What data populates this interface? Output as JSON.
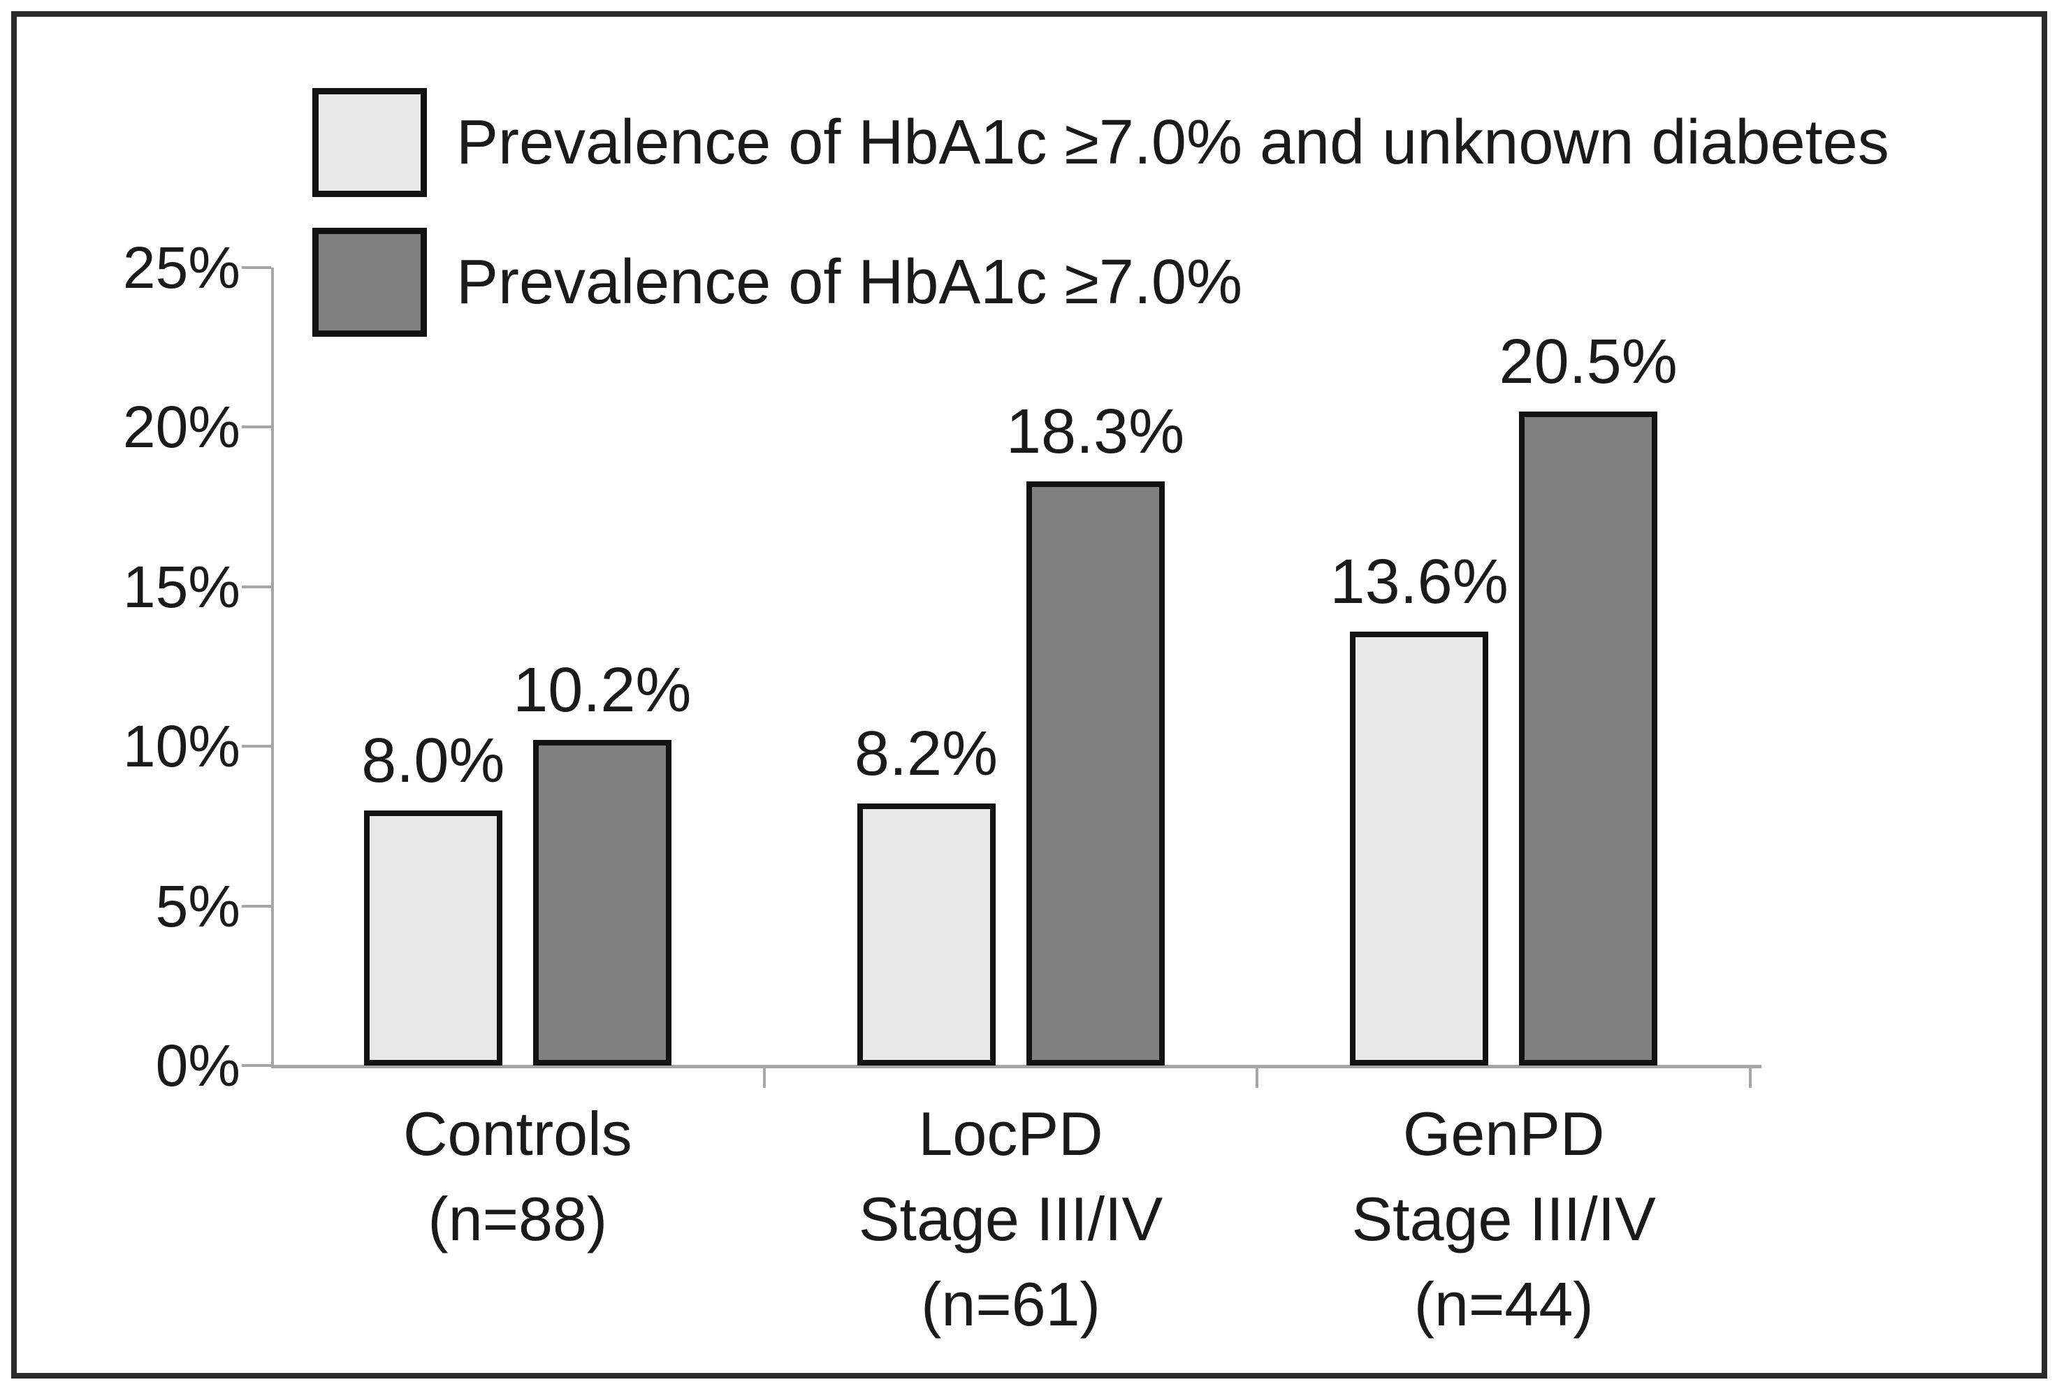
{
  "figure": {
    "kind": "grouped-bar-figure",
    "background": "#ffffff"
  },
  "colors": {
    "bar_light_fill": "#e8e8e8",
    "bar_dark_fill": "#808080",
    "bar_border": "#121212",
    "axis": "#a6a6a6",
    "text": "#1a1a1a",
    "frame_border": "#2b2b2b"
  },
  "chart_data": {
    "type": "bar",
    "title": "",
    "xlabel": "",
    "ylabel": "",
    "grid": false,
    "legend_position": "top-left",
    "ylim": [
      0,
      25
    ],
    "yticks": [
      {
        "value": 0,
        "label": "0%"
      },
      {
        "value": 5,
        "label": "5%"
      },
      {
        "value": 10,
        "label": "10%"
      },
      {
        "value": 15,
        "label": "15%"
      },
      {
        "value": 20,
        "label": "20%"
      },
      {
        "value": 25,
        "label": "25%"
      }
    ],
    "categories": [
      {
        "key": "controls",
        "lines": [
          "Controls",
          "(n=88)"
        ]
      },
      {
        "key": "locpd",
        "lines": [
          "LocPD",
          "Stage III/IV",
          "(n=61)"
        ]
      },
      {
        "key": "genpd",
        "lines": [
          "GenPD",
          "Stage III/IV",
          "(n=44)"
        ]
      }
    ],
    "series": [
      {
        "key": "hba1c-unknown-diabetes",
        "name": "Prevalence of HbA1c ≥7.0% and unknown diabetes",
        "fill": "#e8e8e8",
        "values": [
          8.0,
          8.2,
          13.6
        ],
        "value_labels": [
          "8.0%",
          "8.2%",
          "13.6%"
        ]
      },
      {
        "key": "hba1c",
        "name": "Prevalence of HbA1c ≥7.0%",
        "fill": "#808080",
        "values": [
          10.2,
          18.3,
          20.5
        ],
        "value_labels": [
          "10.2%",
          "18.3%",
          "20.5%"
        ]
      }
    ]
  }
}
